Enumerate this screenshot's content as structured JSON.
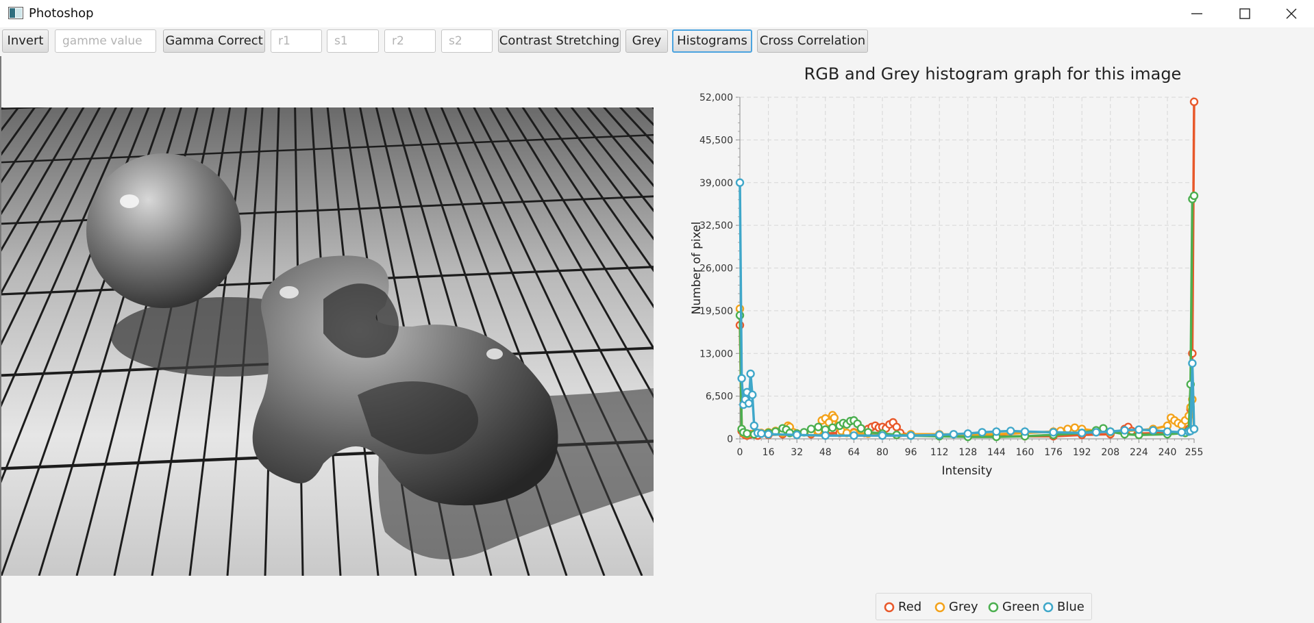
{
  "window": {
    "title": "Photoshop",
    "controls": [
      "minimize-icon",
      "maximize-icon",
      "close-icon"
    ]
  },
  "toolbar": {
    "invent_label": "Invert",
    "gamma_placeholder": "gamme value",
    "gamma_correct_label": "Gamma Correct",
    "r1_placeholder": "r1",
    "s1_placeholder": "s1",
    "r2_placeholder": "r2",
    "s2_placeholder": "s2",
    "contrast_label": "Contrast Stretching",
    "grey_label": "Grey",
    "histograms_label": "Histograms",
    "cross_corr_label": "Cross Correlation"
  },
  "colors": {
    "red": "#e8582a",
    "grey": "#f3a21a",
    "green": "#4caf50",
    "blue": "#3fa7c9",
    "active_border": "#4aa3df"
  },
  "chart_data": {
    "type": "line",
    "title": "RGB and Grey histogram graph for this image",
    "xlabel": "Intensity",
    "ylabel": "Number of pixel",
    "xlim": [
      0,
      255
    ],
    "ylim": [
      0,
      52000
    ],
    "x_ticks": [
      "0",
      "16",
      "32",
      "48",
      "64",
      "80",
      "96",
      "112",
      "128",
      "144",
      "160",
      "176",
      "192",
      "208",
      "224",
      "240",
      "255"
    ],
    "y_ticks": [
      "0",
      "6,500",
      "13,000",
      "19,500",
      "26,000",
      "32,500",
      "39,000",
      "45,500",
      "52,000"
    ],
    "grid": true,
    "legend_position": "bottom",
    "series": [
      {
        "name": "Red",
        "color": "#e8582a",
        "points": [
          [
            0,
            17300
          ],
          [
            1,
            1200
          ],
          [
            2,
            800
          ],
          [
            3,
            600
          ],
          [
            4,
            500
          ],
          [
            6,
            700
          ],
          [
            10,
            500
          ],
          [
            16,
            600
          ],
          [
            24,
            700
          ],
          [
            32,
            800
          ],
          [
            40,
            700
          ],
          [
            48,
            800
          ],
          [
            56,
            900
          ],
          [
            64,
            1000
          ],
          [
            70,
            900
          ],
          [
            72,
            1500
          ],
          [
            74,
            1800
          ],
          [
            76,
            2000
          ],
          [
            78,
            1700
          ],
          [
            80,
            1800
          ],
          [
            82,
            1600
          ],
          [
            84,
            2200
          ],
          [
            86,
            2500
          ],
          [
            88,
            1800
          ],
          [
            90,
            900
          ],
          [
            96,
            600
          ],
          [
            112,
            500
          ],
          [
            128,
            400
          ],
          [
            144,
            400
          ],
          [
            160,
            400
          ],
          [
            176,
            400
          ],
          [
            192,
            600
          ],
          [
            208,
            700
          ],
          [
            216,
            1500
          ],
          [
            218,
            1800
          ],
          [
            220,
            1200
          ],
          [
            224,
            800
          ],
          [
            240,
            900
          ],
          [
            248,
            1000
          ],
          [
            252,
            1500
          ],
          [
            253,
            4500
          ],
          [
            254,
            13000
          ],
          [
            255,
            51300
          ]
        ]
      },
      {
        "name": "Grey",
        "color": "#f3a21a",
        "points": [
          [
            0,
            19800
          ],
          [
            1,
            1500
          ],
          [
            2,
            900
          ],
          [
            4,
            700
          ],
          [
            8,
            800
          ],
          [
            12,
            900
          ],
          [
            16,
            1000
          ],
          [
            20,
            1200
          ],
          [
            24,
            900
          ],
          [
            26,
            1600
          ],
          [
            27,
            2000
          ],
          [
            28,
            1800
          ],
          [
            30,
            1000
          ],
          [
            32,
            800
          ],
          [
            40,
            900
          ],
          [
            44,
            1200
          ],
          [
            46,
            2800
          ],
          [
            48,
            3100
          ],
          [
            50,
            2500
          ],
          [
            52,
            3600
          ],
          [
            53,
            3200
          ],
          [
            55,
            2000
          ],
          [
            57,
            1200
          ],
          [
            60,
            900
          ],
          [
            64,
            900
          ],
          [
            72,
            800
          ],
          [
            80,
            700
          ],
          [
            88,
            600
          ],
          [
            96,
            700
          ],
          [
            112,
            700
          ],
          [
            128,
            600
          ],
          [
            144,
            700
          ],
          [
            160,
            900
          ],
          [
            176,
            1100
          ],
          [
            180,
            1200
          ],
          [
            184,
            1500
          ],
          [
            188,
            1700
          ],
          [
            192,
            1500
          ],
          [
            200,
            1200
          ],
          [
            208,
            1000
          ],
          [
            216,
            1200
          ],
          [
            224,
            1300
          ],
          [
            232,
            1500
          ],
          [
            240,
            2000
          ],
          [
            242,
            3200
          ],
          [
            244,
            2800
          ],
          [
            246,
            2400
          ],
          [
            248,
            2100
          ],
          [
            250,
            2800
          ],
          [
            252,
            3500
          ],
          [
            253,
            4800
          ],
          [
            254,
            6000
          ],
          [
            255,
            1500
          ]
        ]
      },
      {
        "name": "Green",
        "color": "#4caf50",
        "points": [
          [
            0,
            18800
          ],
          [
            1,
            1500
          ],
          [
            2,
            1000
          ],
          [
            4,
            800
          ],
          [
            8,
            700
          ],
          [
            16,
            900
          ],
          [
            20,
            1100
          ],
          [
            24,
            1600
          ],
          [
            26,
            1400
          ],
          [
            28,
            900
          ],
          [
            32,
            800
          ],
          [
            36,
            1000
          ],
          [
            40,
            1500
          ],
          [
            44,
            1800
          ],
          [
            48,
            1400
          ],
          [
            52,
            1700
          ],
          [
            56,
            2000
          ],
          [
            58,
            2400
          ],
          [
            60,
            2200
          ],
          [
            62,
            2700
          ],
          [
            64,
            2800
          ],
          [
            66,
            2300
          ],
          [
            68,
            1600
          ],
          [
            72,
            1000
          ],
          [
            80,
            800
          ],
          [
            88,
            600
          ],
          [
            96,
            500
          ],
          [
            112,
            400
          ],
          [
            128,
            300
          ],
          [
            144,
            300
          ],
          [
            160,
            400
          ],
          [
            176,
            600
          ],
          [
            192,
            900
          ],
          [
            200,
            1300
          ],
          [
            204,
            1600
          ],
          [
            208,
            1100
          ],
          [
            216,
            700
          ],
          [
            224,
            600
          ],
          [
            240,
            700
          ],
          [
            250,
            900
          ],
          [
            252,
            1200
          ],
          [
            253,
            8300
          ],
          [
            254,
            36500
          ],
          [
            255,
            37000
          ]
        ]
      },
      {
        "name": "Blue",
        "color": "#3fa7c9",
        "points": [
          [
            0,
            39000
          ],
          [
            1,
            9200
          ],
          [
            2,
            5200
          ],
          [
            3,
            6000
          ],
          [
            4,
            7100
          ],
          [
            5,
            5400
          ],
          [
            6,
            9900
          ],
          [
            7,
            6700
          ],
          [
            8,
            2000
          ],
          [
            10,
            900
          ],
          [
            12,
            800
          ],
          [
            16,
            700
          ],
          [
            32,
            600
          ],
          [
            48,
            500
          ],
          [
            64,
            500
          ],
          [
            80,
            500
          ],
          [
            96,
            500
          ],
          [
            112,
            600
          ],
          [
            120,
            700
          ],
          [
            128,
            800
          ],
          [
            136,
            1000
          ],
          [
            144,
            1100
          ],
          [
            152,
            1200
          ],
          [
            160,
            1100
          ],
          [
            176,
            1000
          ],
          [
            192,
            900
          ],
          [
            200,
            1000
          ],
          [
            208,
            1100
          ],
          [
            216,
            1300
          ],
          [
            224,
            1400
          ],
          [
            232,
            1300
          ],
          [
            240,
            1100
          ],
          [
            248,
            1000
          ],
          [
            252,
            1100
          ],
          [
            253,
            1200
          ],
          [
            254,
            11500
          ],
          [
            255,
            1500
          ]
        ]
      }
    ]
  },
  "legend": {
    "items": [
      "Red",
      "Grey",
      "Green",
      "Blue"
    ]
  },
  "photo": {
    "description_icon": "rendered-spheres-image"
  }
}
